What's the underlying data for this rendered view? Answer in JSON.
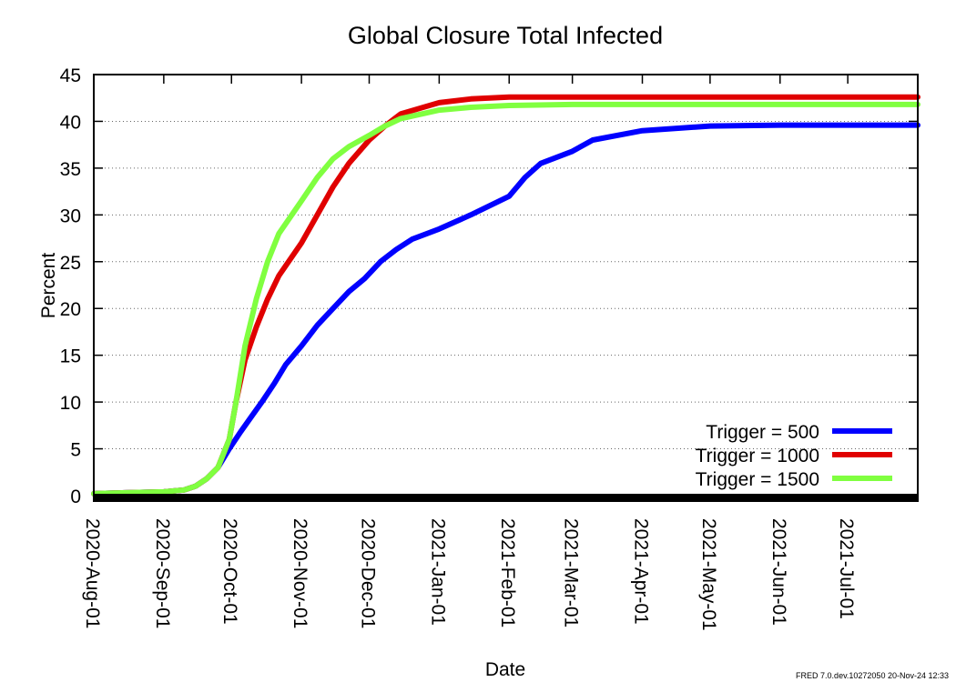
{
  "chart_data": {
    "type": "line",
    "title": "Global Closure Total Infected",
    "xlabel": "Date",
    "ylabel": "Percent",
    "ylim": [
      0,
      45
    ],
    "yticks": [
      0,
      5,
      10,
      15,
      20,
      25,
      30,
      35,
      40,
      45
    ],
    "xlim": [
      "2020-08-01",
      "2021-08-01"
    ],
    "xticks": [
      "2020-Aug-01",
      "2020-Sep-01",
      "2020-Oct-01",
      "2020-Nov-01",
      "2020-Dec-01",
      "2021-Jan-01",
      "2021-Feb-01",
      "2021-Mar-01",
      "2021-Apr-01",
      "2021-May-01",
      "2021-Jun-01",
      "2021-Jul-01"
    ],
    "xtick_dates": [
      "2020-08-01",
      "2020-09-01",
      "2020-10-01",
      "2020-11-01",
      "2020-12-01",
      "2021-01-01",
      "2021-02-01",
      "2021-03-01",
      "2021-04-01",
      "2021-05-01",
      "2021-06-01",
      "2021-07-01"
    ],
    "grid": "horizontal dotted",
    "legend": "bottom-right",
    "series": [
      {
        "name": "Trigger = 500",
        "color": "#0000ff",
        "points": [
          [
            "2020-08-01",
            0.2
          ],
          [
            "2020-08-15",
            0.3
          ],
          [
            "2020-09-01",
            0.4
          ],
          [
            "2020-09-10",
            0.6
          ],
          [
            "2020-09-15",
            1.0
          ],
          [
            "2020-09-20",
            1.8
          ],
          [
            "2020-09-25",
            3.0
          ],
          [
            "2020-09-30",
            5.0
          ],
          [
            "2020-10-05",
            6.8
          ],
          [
            "2020-10-10",
            8.5
          ],
          [
            "2020-10-15",
            10.2
          ],
          [
            "2020-10-20",
            12.0
          ],
          [
            "2020-10-25",
            14.0
          ],
          [
            "2020-11-01",
            16.0
          ],
          [
            "2020-11-08",
            18.2
          ],
          [
            "2020-11-15",
            20.0
          ],
          [
            "2020-11-22",
            21.8
          ],
          [
            "2020-11-29",
            23.2
          ],
          [
            "2020-12-06",
            25.0
          ],
          [
            "2020-12-13",
            26.3
          ],
          [
            "2020-12-20",
            27.4
          ],
          [
            "2021-01-01",
            28.5
          ],
          [
            "2021-01-15",
            30.0
          ],
          [
            "2021-02-01",
            32.0
          ],
          [
            "2021-02-08",
            34.0
          ],
          [
            "2021-02-15",
            35.5
          ],
          [
            "2021-03-01",
            36.8
          ],
          [
            "2021-03-10",
            38.0
          ],
          [
            "2021-04-01",
            39.0
          ],
          [
            "2021-05-01",
            39.5
          ],
          [
            "2021-06-01",
            39.6
          ],
          [
            "2021-08-01",
            39.6
          ]
        ]
      },
      {
        "name": "Trigger = 1000",
        "color": "#e00000",
        "points": [
          [
            "2020-08-01",
            0.2
          ],
          [
            "2020-08-15",
            0.3
          ],
          [
            "2020-09-01",
            0.4
          ],
          [
            "2020-09-10",
            0.6
          ],
          [
            "2020-09-15",
            1.0
          ],
          [
            "2020-09-20",
            1.8
          ],
          [
            "2020-09-25",
            3.0
          ],
          [
            "2020-09-30",
            6.0
          ],
          [
            "2020-10-03",
            10.0
          ],
          [
            "2020-10-07",
            14.5
          ],
          [
            "2020-10-12",
            18.0
          ],
          [
            "2020-10-17",
            21.0
          ],
          [
            "2020-10-22",
            23.5
          ],
          [
            "2020-11-01",
            27.0
          ],
          [
            "2020-11-08",
            30.0
          ],
          [
            "2020-11-15",
            33.0
          ],
          [
            "2020-11-22",
            35.5
          ],
          [
            "2020-12-01",
            38.0
          ],
          [
            "2020-12-08",
            39.5
          ],
          [
            "2020-12-15",
            40.8
          ],
          [
            "2021-01-01",
            42.0
          ],
          [
            "2021-01-15",
            42.4
          ],
          [
            "2021-02-01",
            42.6
          ],
          [
            "2021-08-01",
            42.6
          ]
        ]
      },
      {
        "name": "Trigger = 1500",
        "color": "#80ff40",
        "points": [
          [
            "2020-08-01",
            0.2
          ],
          [
            "2020-08-15",
            0.3
          ],
          [
            "2020-09-01",
            0.4
          ],
          [
            "2020-09-10",
            0.6
          ],
          [
            "2020-09-15",
            1.0
          ],
          [
            "2020-09-20",
            1.8
          ],
          [
            "2020-09-25",
            3.0
          ],
          [
            "2020-09-30",
            6.0
          ],
          [
            "2020-10-03",
            10.0
          ],
          [
            "2020-10-07",
            16.0
          ],
          [
            "2020-10-12",
            21.0
          ],
          [
            "2020-10-17",
            25.0
          ],
          [
            "2020-10-22",
            28.0
          ],
          [
            "2020-11-01",
            31.5
          ],
          [
            "2020-11-08",
            34.0
          ],
          [
            "2020-11-15",
            36.0
          ],
          [
            "2020-11-22",
            37.3
          ],
          [
            "2020-12-01",
            38.5
          ],
          [
            "2020-12-08",
            39.5
          ],
          [
            "2020-12-15",
            40.3
          ],
          [
            "2021-01-01",
            41.2
          ],
          [
            "2021-01-15",
            41.5
          ],
          [
            "2021-02-01",
            41.7
          ],
          [
            "2021-03-01",
            41.8
          ],
          [
            "2021-08-01",
            41.8
          ]
        ]
      }
    ]
  },
  "footer_note": "FRED 7.0.dev.10272050 20-Nov-24 12:33"
}
